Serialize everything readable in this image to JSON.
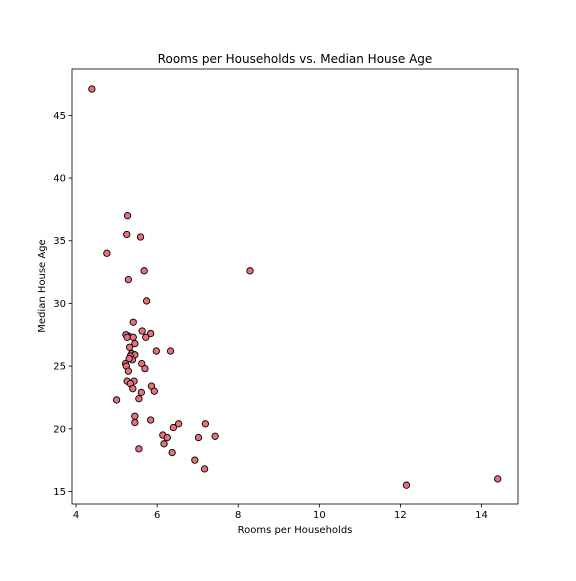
{
  "colors": {
    "marker_fill": "#e8707a",
    "marker_edge": "#000000",
    "axis": "#000000",
    "background": "#ffffff"
  },
  "chart_data": {
    "type": "scatter",
    "title": "Rooms per Households vs. Median House Age",
    "xlabel": "Rooms per Households",
    "ylabel": "Median House Age",
    "xlim": [
      3.9,
      14.9
    ],
    "ylim": [
      14.0,
      48.7
    ],
    "xticks": [
      4,
      6,
      8,
      10,
      12,
      14
    ],
    "yticks": [
      15,
      20,
      25,
      30,
      35,
      40,
      45
    ],
    "grid": false,
    "legend": "none",
    "series": [
      {
        "x": [
          4.39,
          4.76,
          5.27,
          5.25,
          5.29,
          5.59,
          5.68,
          5.74,
          8.29,
          5.29,
          5.63,
          5.84,
          5.23,
          5.26,
          5.41,
          5.45,
          5.41,
          5.72,
          5.32,
          5.37,
          5.45,
          5.98,
          6.33,
          5.34,
          5.39,
          5.31,
          5.22,
          5.24,
          5.62,
          5.7,
          5.29,
          5.26,
          5.43,
          5.34,
          5.86,
          5.93,
          5.4,
          5.61,
          5.0,
          5.55,
          5.45,
          5.84,
          5.45,
          6.53,
          6.4,
          7.19,
          6.14,
          6.25,
          7.02,
          7.43,
          6.17,
          6.37,
          6.93,
          7.17,
          5.55,
          12.15,
          14.4
        ],
        "y": [
          47.1,
          34.0,
          37.0,
          35.5,
          31.9,
          35.3,
          32.6,
          30.2,
          32.6,
          27.4,
          27.8,
          27.6,
          27.5,
          27.3,
          28.5,
          26.8,
          27.3,
          27.3,
          26.5,
          26.0,
          25.9,
          26.2,
          26.2,
          25.8,
          25.5,
          25.6,
          25.2,
          25.0,
          25.2,
          24.8,
          24.6,
          23.8,
          23.8,
          23.6,
          23.4,
          23.0,
          23.2,
          22.9,
          22.3,
          22.4,
          21.0,
          20.7,
          20.5,
          20.4,
          20.1,
          20.4,
          19.5,
          19.3,
          19.3,
          19.4,
          18.8,
          18.1,
          17.5,
          16.8,
          18.4,
          15.5,
          16.0
        ]
      }
    ]
  }
}
